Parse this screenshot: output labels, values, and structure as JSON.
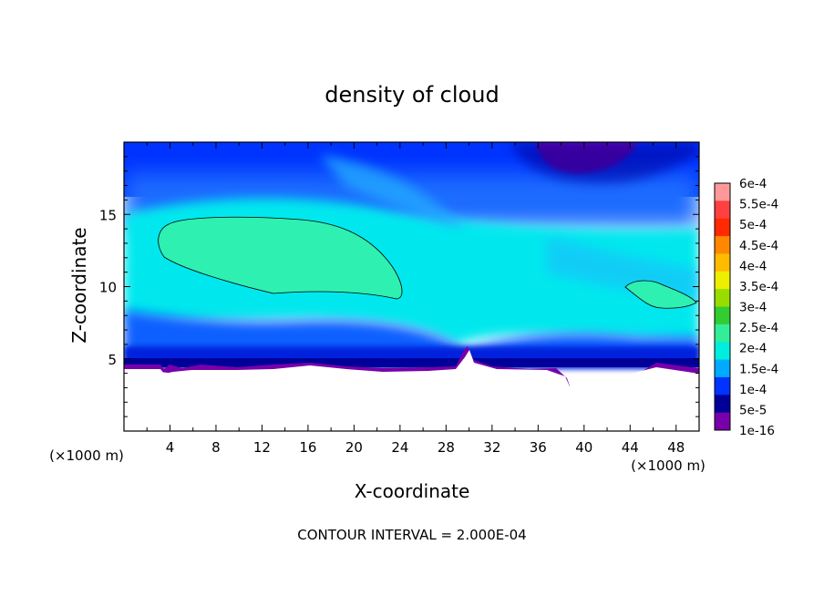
{
  "chart_data": {
    "type": "heatmap",
    "title": "density of cloud",
    "xlabel": "X-coordinate",
    "ylabel": "Z-coordinate",
    "x_unit_left": "(×1000 m)",
    "x_unit_right": "(×1000 m)",
    "footer": "CONTOUR INTERVAL = 2.000E-04",
    "xlim": [
      0,
      50
    ],
    "ylim": [
      0,
      20
    ],
    "x_ticks": [
      4,
      8,
      12,
      16,
      20,
      24,
      28,
      32,
      36,
      40,
      44,
      48
    ],
    "x_tick_labels": [
      "4",
      "8",
      "12",
      "16",
      "20",
      "24",
      "28",
      "32",
      "36",
      "40",
      "44",
      "48"
    ],
    "y_ticks": [
      5,
      10,
      15
    ],
    "y_tick_labels": [
      "5",
      "10",
      "15"
    ],
    "colorbar": {
      "labels": [
        "6e-4",
        "5.5e-4",
        "5e-4",
        "4.5e-4",
        "4e-4",
        "3.5e-4",
        "3e-4",
        "2.5e-4",
        "2e-4",
        "1.5e-4",
        "1e-4",
        "5e-5",
        "1e-16"
      ],
      "colors": [
        "#ff9999",
        "#ff4040",
        "#ff2a00",
        "#ff8800",
        "#ffbb00",
        "#eeee00",
        "#99dd00",
        "#33cc33",
        "#33ee99",
        "#00eedd",
        "#00aaff",
        "#0033ff",
        "#000099",
        "#7700aa"
      ]
    },
    "contour_level": 0.0002,
    "regions": [
      {
        "name": "main-contour-region",
        "value": "2e-4 to 2.5e-4",
        "x_range": [
          3,
          24
        ],
        "z_range": [
          9.7,
          14.8
        ]
      },
      {
        "name": "right-contour-region",
        "value": "2e-4 to 2.5e-4",
        "x_range": [
          43.5,
          49.5
        ],
        "z_range": [
          8.4,
          10.4
        ]
      },
      {
        "name": "low-density-top-region",
        "value": "1e-16 to 5e-5",
        "x_range": [
          36,
          44
        ],
        "z_range": [
          17.5,
          20
        ]
      }
    ]
  }
}
